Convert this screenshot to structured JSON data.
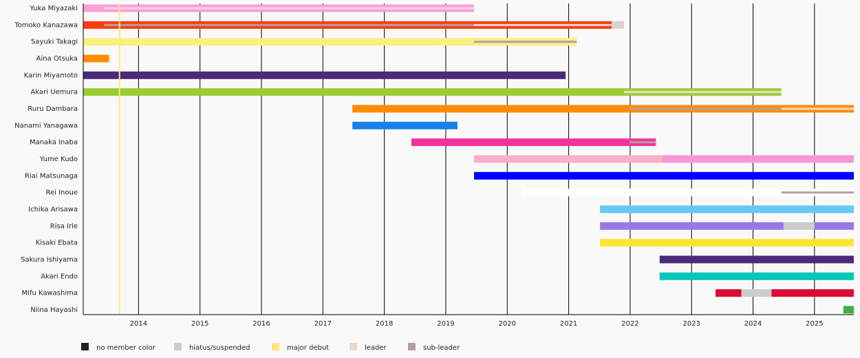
{
  "chart_data": {
    "type": "timeline",
    "categories": [
      "Yuka Miyazaki",
      "Tomoko Kanazawa",
      "Sayuki Takagi",
      "Aina Otsuka",
      "Karin Miyamoto",
      "Akari Uemura",
      "Ruru Dambara",
      "Nanami Yanagawa",
      "Manaka Inaba",
      "Yume Kudo",
      "Riai Matsunaga",
      "Rei Inoue",
      "Ichika Arisawa",
      "Risa Irie",
      "Kisaki Ebata",
      "Sakura Ishiyama",
      "Akari Endo",
      "Mifu Kawashima",
      "Niina Hayashi"
    ],
    "xlim": [
      2013.1,
      2025.64
    ],
    "xticks": [
      2014,
      2015,
      2016,
      2017,
      2018,
      2019,
      2020,
      2021,
      2022,
      2023,
      2024,
      2025
    ],
    "grid": true,
    "segments": [
      {
        "row": 0,
        "start": 2013.1,
        "end": 2019.46,
        "color": "#f9a0d3"
      },
      {
        "row": 1,
        "start": 2013.1,
        "end": 2021.7,
        "color": "#ff3b10"
      },
      {
        "row": 1,
        "start": 2021.7,
        "end": 2021.9,
        "color": "#ddd0cc"
      },
      {
        "row": 2,
        "start": 2013.1,
        "end": 2021.13,
        "color": "#fbf07e"
      },
      {
        "row": 3,
        "start": 2013.1,
        "end": 2013.52,
        "color": "#ff8c00"
      },
      {
        "row": 4,
        "start": 2013.1,
        "end": 2020.95,
        "color": "#4b2a78"
      },
      {
        "row": 5,
        "start": 2013.1,
        "end": 2024.46,
        "color": "#9acd32"
      },
      {
        "row": 6,
        "start": 2017.48,
        "end": 2025.64,
        "color": "#ff8c00"
      },
      {
        "row": 7,
        "start": 2017.48,
        "end": 2019.19,
        "color": "#1a80e8"
      },
      {
        "row": 8,
        "start": 2018.44,
        "end": 2022.42,
        "color": "#f0339f"
      },
      {
        "row": 9,
        "start": 2019.46,
        "end": 2022.52,
        "color": "#f8b0c6"
      },
      {
        "row": 9,
        "start": 2022.52,
        "end": 2025.64,
        "color": "#fa96d5"
      },
      {
        "row": 10,
        "start": 2019.46,
        "end": 2025.64,
        "color": "#0000ff"
      },
      {
        "row": 11,
        "start": 2020.24,
        "end": 2025.64,
        "color": "#ffffff"
      },
      {
        "row": 12,
        "start": 2021.51,
        "end": 2025.64,
        "color": "#66c8f5"
      },
      {
        "row": 13,
        "start": 2021.51,
        "end": 2024.5,
        "color": "#9878e8"
      },
      {
        "row": 13,
        "start": 2024.5,
        "end": 2025.0,
        "color": "#cccccc"
      },
      {
        "row": 13,
        "start": 2025.0,
        "end": 2025.64,
        "color": "#9878e8"
      },
      {
        "row": 14,
        "start": 2021.51,
        "end": 2025.64,
        "color": "#ffe533"
      },
      {
        "row": 15,
        "start": 2022.48,
        "end": 2025.64,
        "color": "#4b2a78"
      },
      {
        "row": 16,
        "start": 2022.48,
        "end": 2025.64,
        "color": "#00c8b8"
      },
      {
        "row": 17,
        "start": 2023.39,
        "end": 2023.81,
        "color": "#dc0a32"
      },
      {
        "row": 17,
        "start": 2023.81,
        "end": 2024.3,
        "color": "#cccccc"
      },
      {
        "row": 17,
        "start": 2024.3,
        "end": 2025.64,
        "color": "#dc0a32"
      },
      {
        "row": 18,
        "start": 2025.47,
        "end": 2025.64,
        "color": "#3cb043"
      }
    ],
    "role_lines": [
      {
        "row": 0,
        "start": 2013.44,
        "end": 2019.46,
        "color": "#fbd0e6"
      },
      {
        "row": 1,
        "start": 2013.44,
        "end": 2019.46,
        "color": "#b3a0a0"
      },
      {
        "row": 1,
        "start": 2019.46,
        "end": 2021.7,
        "color": "#f0dcd2"
      },
      {
        "row": 2,
        "start": 2019.46,
        "end": 2021.13,
        "color": "#b3a0a0"
      },
      {
        "row": 5,
        "start": 2021.9,
        "end": 2024.46,
        "color": "#e8dccf"
      },
      {
        "row": 6,
        "start": 2021.99,
        "end": 2024.46,
        "color": "#b3a0a0"
      },
      {
        "row": 6,
        "start": 2024.46,
        "end": 2025.64,
        "color": "#e8dccf"
      },
      {
        "row": 8,
        "start": 2021.99,
        "end": 2022.42,
        "color": "#b3a0a0"
      },
      {
        "row": 11,
        "start": 2024.46,
        "end": 2025.64,
        "color": "#b3a0a0"
      }
    ],
    "debut_lines": [
      {
        "x": 2013.69,
        "color": "#ffe680"
      }
    ],
    "legend": [
      {
        "label": "no member color",
        "color": "#222222"
      },
      {
        "label": "hiatus/suspended",
        "color": "#cccccc"
      },
      {
        "label": "major debut",
        "color": "#ffe680"
      },
      {
        "label": "leader",
        "color": "#e8d8cc"
      },
      {
        "label": "sub-leader",
        "color": "#b3a0a0"
      }
    ]
  }
}
